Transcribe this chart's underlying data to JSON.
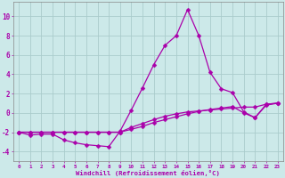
{
  "background_color": "#cce9e9",
  "grid_color": "#aacccc",
  "line_color": "#aa00aa",
  "xlabel": "Windchill (Refroidissement éolien,°C)",
  "xlim": [
    -0.5,
    23.5
  ],
  "ylim": [
    -5.0,
    11.5
  ],
  "yticks": [
    -4,
    -2,
    0,
    2,
    4,
    6,
    8,
    10
  ],
  "xticks": [
    0,
    1,
    2,
    3,
    4,
    5,
    6,
    7,
    8,
    9,
    10,
    11,
    12,
    13,
    14,
    15,
    16,
    17,
    18,
    19,
    20,
    21,
    22,
    23
  ],
  "line1_x": [
    0,
    1,
    2,
    3,
    4,
    5,
    6,
    7,
    8,
    9,
    10,
    11,
    12,
    13,
    14,
    15,
    16,
    17,
    18,
    19,
    20,
    21,
    22,
    23
  ],
  "line1_y": [
    -2.0,
    -2.3,
    -2.2,
    -2.2,
    -2.8,
    -3.1,
    -3.3,
    -3.4,
    -3.5,
    -1.9,
    0.3,
    2.6,
    5.0,
    7.0,
    8.0,
    10.7,
    8.0,
    4.2,
    2.5,
    2.1,
    0.1,
    -0.5,
    0.8,
    1.0
  ],
  "line2_x": [
    0,
    1,
    2,
    3,
    4,
    5,
    6,
    7,
    8,
    9,
    10,
    11,
    12,
    13,
    14,
    15,
    16,
    17,
    18,
    19,
    20,
    21,
    22,
    23
  ],
  "line2_y": [
    -2.0,
    -2.0,
    -2.0,
    -2.0,
    -2.0,
    -2.0,
    -2.0,
    -2.0,
    -2.0,
    -2.0,
    -1.7,
    -1.4,
    -1.0,
    -0.7,
    -0.4,
    -0.1,
    0.15,
    0.35,
    0.5,
    0.65,
    0.0,
    -0.5,
    0.9,
    1.0
  ],
  "line3_x": [
    0,
    1,
    2,
    3,
    4,
    5,
    6,
    7,
    8,
    9,
    10,
    11,
    12,
    13,
    14,
    15,
    16,
    17,
    18,
    19,
    20,
    21,
    22,
    23
  ],
  "line3_y": [
    -2.0,
    -2.0,
    -2.0,
    -2.0,
    -2.0,
    -2.0,
    -2.0,
    -2.0,
    -2.0,
    -2.0,
    -1.5,
    -1.1,
    -0.7,
    -0.35,
    -0.1,
    0.1,
    0.2,
    0.3,
    0.4,
    0.5,
    0.6,
    0.6,
    0.9,
    1.0
  ],
  "markersize": 2.5,
  "linewidth": 0.9
}
